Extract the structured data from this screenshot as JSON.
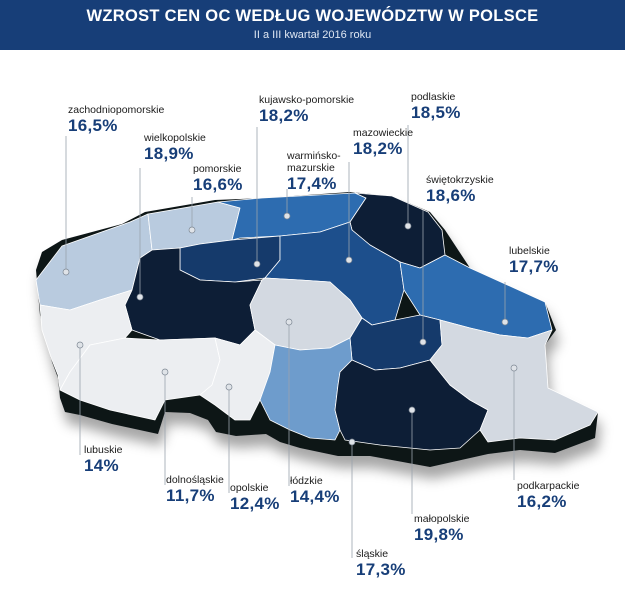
{
  "header": {
    "title": "WZROST CEN OC WEDŁUG WOJEWÓDZTW W POLSCE",
    "subtitle": "II a III kwartał 2016 roku"
  },
  "map": {
    "colors": {
      "header": "#173e78",
      "value_text": "#173e78",
      "darkest": "#0d1e36",
      "dark": "#153a6b",
      "medium_dark": "#1d4f8c",
      "medium": "#2d6cb0",
      "light_blue": "#6e9ccc",
      "pale_blue": "#b9cbdf",
      "light_gray": "#d3d9e1",
      "near_white": "#eceef1"
    },
    "regions": [
      {
        "id": "zachodniopomorskie",
        "name": "zachodniopomorskie",
        "value": "16,5%",
        "color": "pale_blue"
      },
      {
        "id": "pomorskie",
        "name": "pomorskie",
        "value": "16,6%",
        "color": "pale_blue"
      },
      {
        "id": "warminsko-mazurskie",
        "name": "warmińsko-\nmazurskie",
        "value": "17,4%",
        "color": "medium"
      },
      {
        "id": "podlaskie",
        "name": "podlaskie",
        "value": "18,5%",
        "color": "darkest"
      },
      {
        "id": "kujawsko-pomorskie",
        "name": "kujawsko-pomorskie",
        "value": "18,2%",
        "color": "dark"
      },
      {
        "id": "wielkopolskie",
        "name": "wielkopolskie",
        "value": "18,9%",
        "color": "darkest"
      },
      {
        "id": "mazowieckie",
        "name": "mazowieckie",
        "value": "18,2%",
        "color": "medium_dark"
      },
      {
        "id": "lubuskie",
        "name": "lubuskie",
        "value": "14%",
        "color": "near_white"
      },
      {
        "id": "lodzkie",
        "name": "łódzkie",
        "value": "14,4%",
        "color": "light_gray"
      },
      {
        "id": "lubelskie",
        "name": "lubelskie",
        "value": "17,7%",
        "color": "medium"
      },
      {
        "id": "swietokrzyskie",
        "name": "świętokrzyskie",
        "value": "18,6%",
        "color": "dark"
      },
      {
        "id": "dolnoslaskie",
        "name": "dolnośląskie",
        "value": "11,7%",
        "color": "near_white"
      },
      {
        "id": "opolskie",
        "name": "opolskie",
        "value": "12,4%",
        "color": "near_white"
      },
      {
        "id": "slaskie",
        "name": "śląskie",
        "value": "17,3%",
        "color": "light_blue"
      },
      {
        "id": "malopolskie",
        "name": "małopolskie",
        "value": "19,8%",
        "color": "darkest"
      },
      {
        "id": "podkarpackie",
        "name": "podkarpackie",
        "value": "16,2%",
        "color": "light_gray"
      }
    ]
  }
}
